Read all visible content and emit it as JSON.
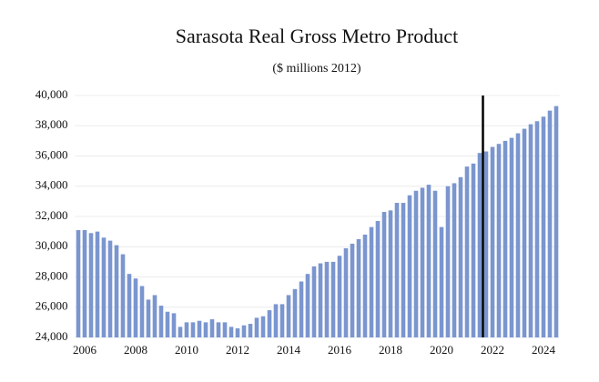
{
  "chart_data": {
    "type": "bar",
    "title": "Sarasota Real Gross Metro Product",
    "subtitle": "($ millions 2012)",
    "categories": [
      null,
      "2006",
      null,
      null,
      null,
      null,
      null,
      null,
      null,
      "2008",
      null,
      null,
      null,
      null,
      null,
      null,
      null,
      "2010",
      null,
      null,
      null,
      null,
      null,
      null,
      null,
      "2012",
      null,
      null,
      null,
      null,
      null,
      null,
      null,
      "2014",
      null,
      null,
      null,
      null,
      null,
      null,
      null,
      "2016",
      null,
      null,
      null,
      null,
      null,
      null,
      null,
      "2018",
      null,
      null,
      null,
      null,
      null,
      null,
      null,
      "2020",
      null,
      null,
      null,
      null,
      null,
      null,
      null,
      "2022",
      null,
      null,
      null,
      null,
      null,
      null,
      null,
      "2024",
      null,
      null
    ],
    "values": [
      31100,
      31100,
      30900,
      31000,
      30600,
      30400,
      30100,
      29500,
      28200,
      27900,
      27400,
      26500,
      26800,
      26100,
      25700,
      25600,
      24700,
      25000,
      25000,
      25100,
      25000,
      25200,
      25000,
      25000,
      24700,
      24600,
      24800,
      24900,
      25300,
      25400,
      25800,
      26200,
      26200,
      26800,
      27200,
      27700,
      28200,
      28700,
      28900,
      29000,
      29000,
      29400,
      29900,
      30200,
      30500,
      30800,
      31300,
      31700,
      32300,
      32400,
      32900,
      32900,
      33400,
      33700,
      33900,
      34100,
      33700,
      31300,
      34000,
      34200,
      34600,
      35300,
      35500,
      36200,
      36300,
      36600,
      36800,
      37000,
      37200,
      37500,
      37800,
      38100,
      38300,
      38600,
      39000,
      39300
    ],
    "color": "#7b96cf",
    "ylim": [
      24000,
      40000
    ],
    "yticks": [
      {
        "value": 24000,
        "label": "24,000"
      },
      {
        "value": 26000,
        "label": "26,000"
      },
      {
        "value": 28000,
        "label": "28,000"
      },
      {
        "value": 30000,
        "label": "30,000"
      },
      {
        "value": 32000,
        "label": "32,000"
      },
      {
        "value": 34000,
        "label": "34,000"
      },
      {
        "value": 36000,
        "label": "36,000"
      },
      {
        "value": 38000,
        "label": "38,000"
      },
      {
        "value": 40000,
        "label": "40,000"
      }
    ],
    "grid": true,
    "vline_after_category": 63
  }
}
